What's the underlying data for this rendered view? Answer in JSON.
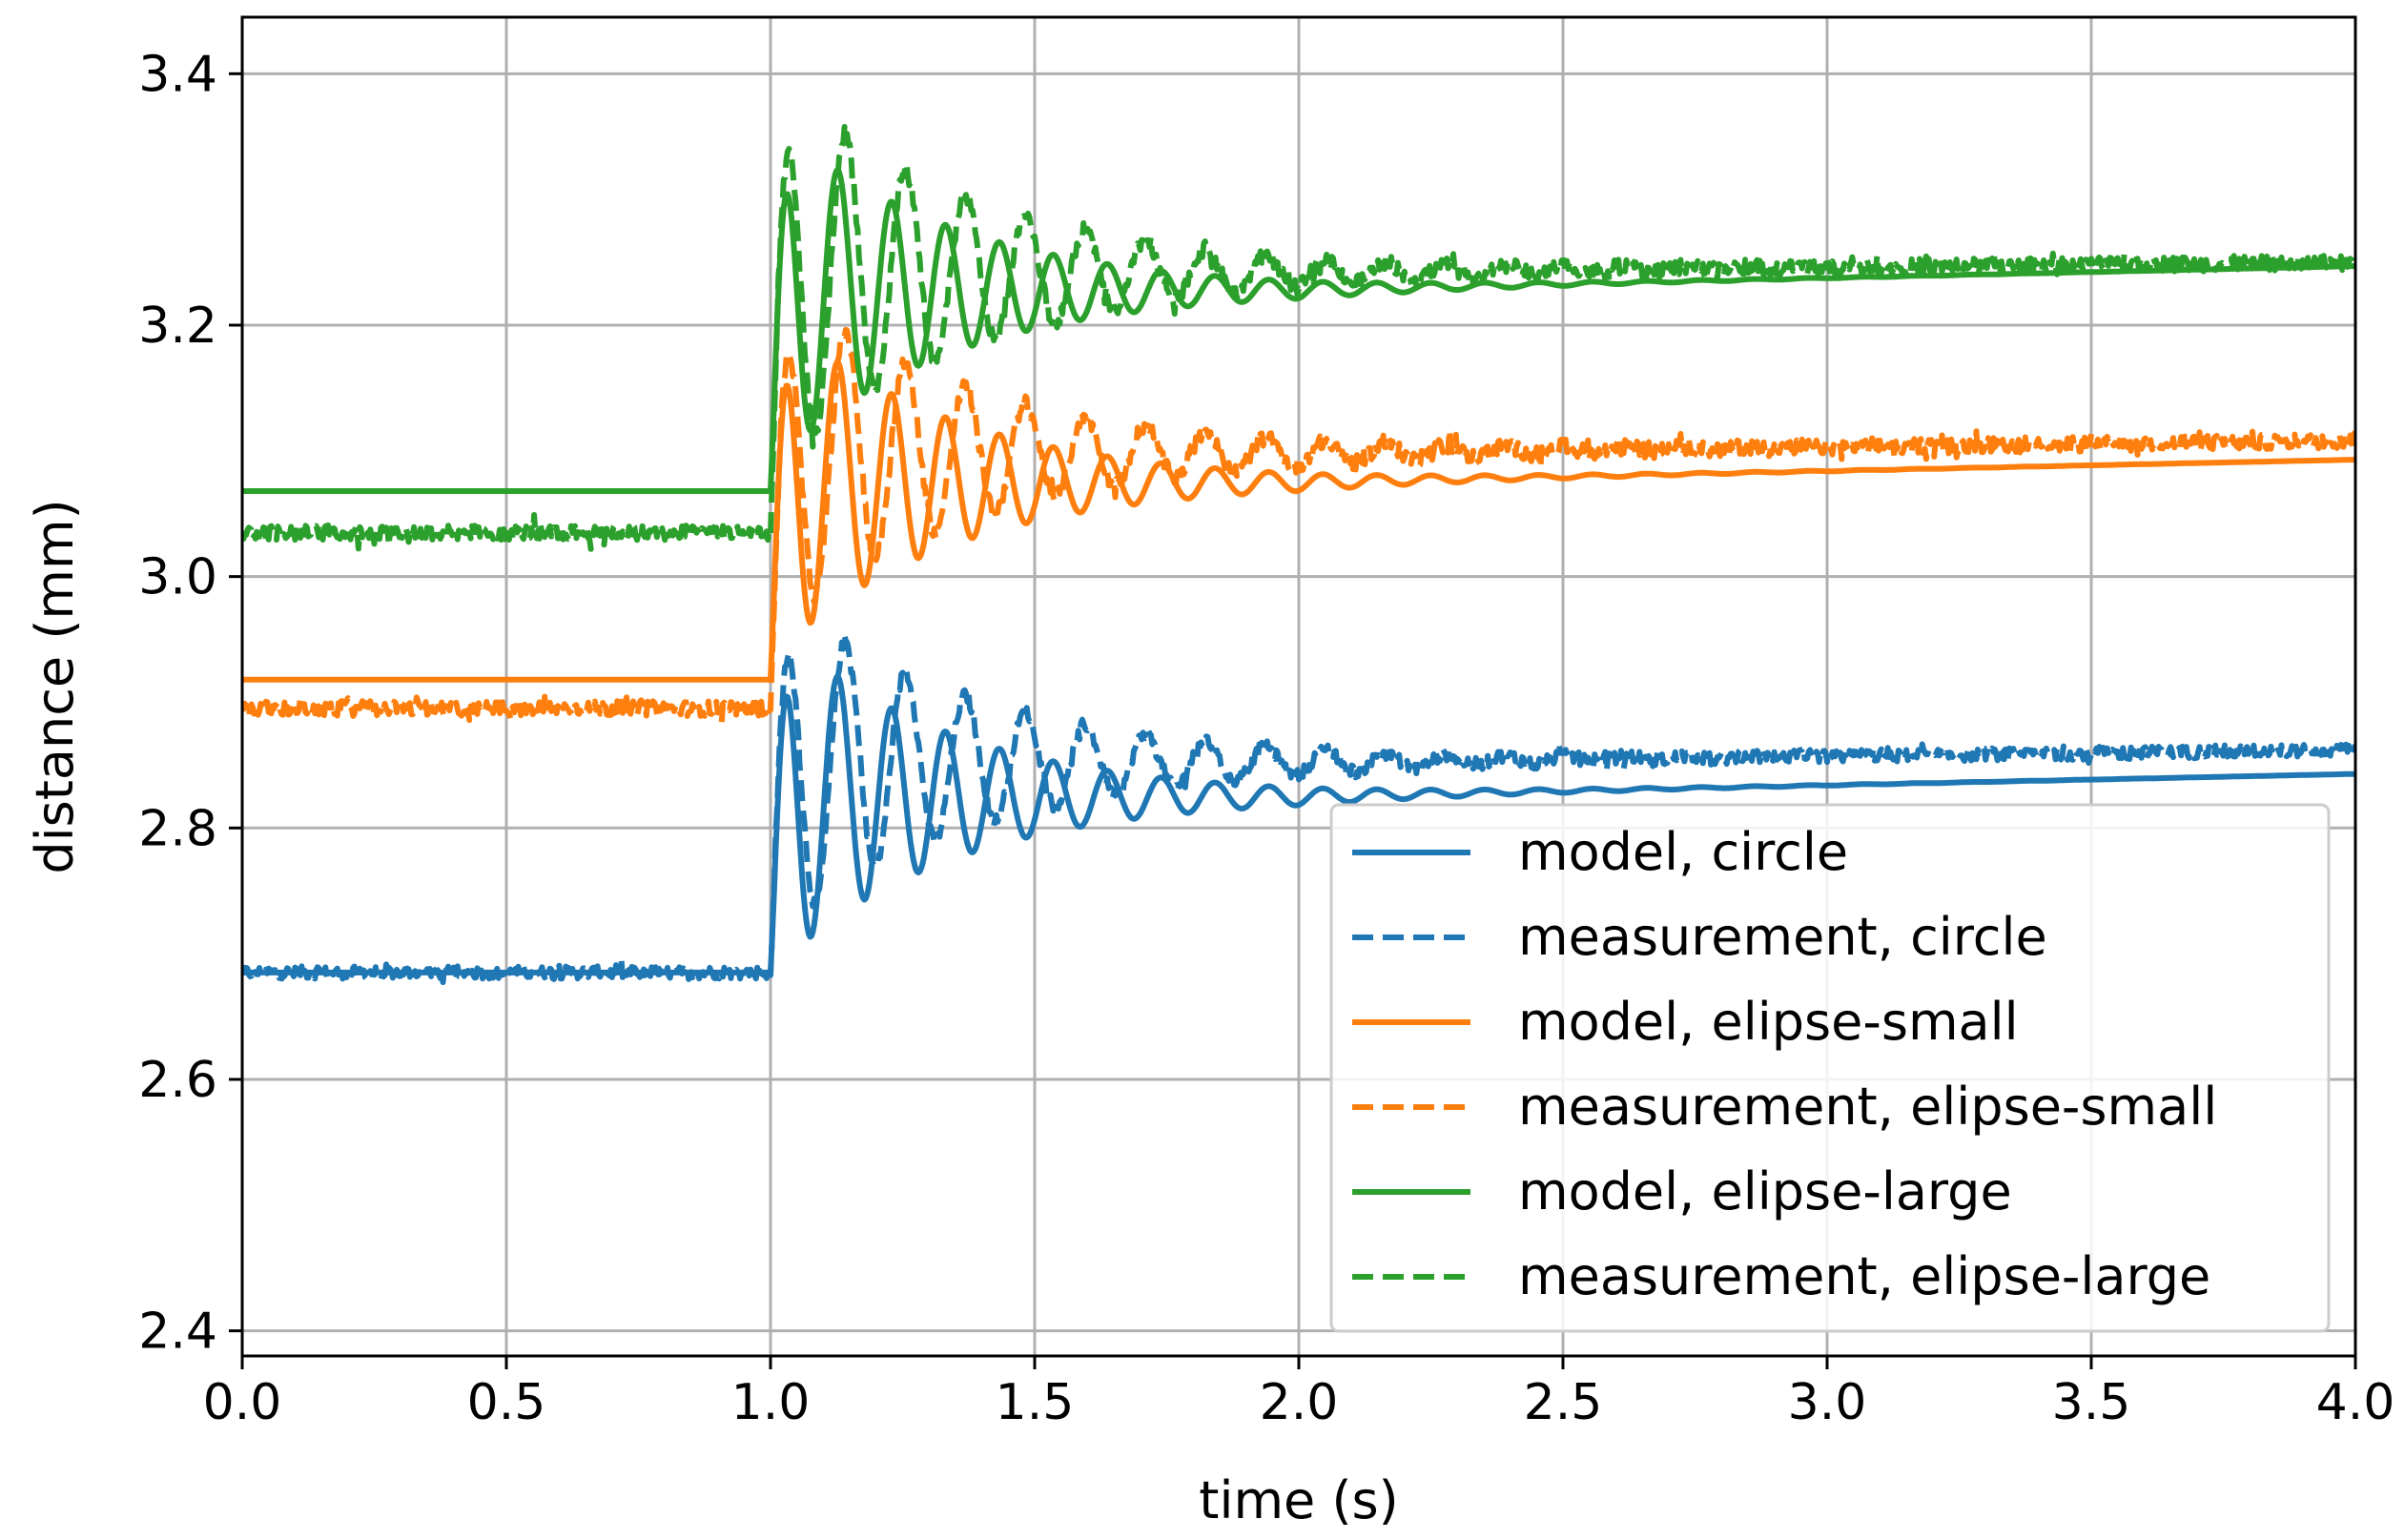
{
  "chart_data": {
    "type": "line",
    "title": "",
    "xlabel": "time (s)",
    "ylabel": "distance (mm)",
    "xlim": [
      0.0,
      4.0
    ],
    "ylim": [
      2.38,
      3.445
    ],
    "grid": true,
    "legend_position": "lower-right",
    "x_ticks": [
      {
        "value": 0.0,
        "label": "0.0"
      },
      {
        "value": 0.5,
        "label": "0.5"
      },
      {
        "value": 1.0,
        "label": "1.0"
      },
      {
        "value": 1.5,
        "label": "1.5"
      },
      {
        "value": 2.0,
        "label": "2.0"
      },
      {
        "value": 2.5,
        "label": "2.5"
      },
      {
        "value": 3.0,
        "label": "3.0"
      },
      {
        "value": 3.5,
        "label": "3.5"
      },
      {
        "value": 4.0,
        "label": "4.0"
      }
    ],
    "y_ticks": [
      {
        "value": 2.4,
        "label": "2.4"
      },
      {
        "value": 2.6,
        "label": "2.6"
      },
      {
        "value": 2.8,
        "label": "2.8"
      },
      {
        "value": 3.0,
        "label": "3.0"
      },
      {
        "value": 3.2,
        "label": "3.2"
      },
      {
        "value": 3.4,
        "label": "3.4"
      }
    ],
    "series": [
      {
        "name": "model, circle",
        "color": "#1f77b4",
        "style": "solid",
        "base": 2.685,
        "step_time": 1.0,
        "amplitude": 0.14,
        "decay": 3.0,
        "frequency": 9.8,
        "final": 2.825,
        "final_at_4s": 2.843,
        "noise": 0.0,
        "offset": -0.03
      },
      {
        "name": "measurement, circle",
        "color": "#1f77b4",
        "style": "dashed",
        "base": 2.685,
        "step_time": 1.0,
        "amplitude": 0.14,
        "decay": 2.6,
        "frequency": 8.8,
        "final": 2.852,
        "final_at_4s": 2.862,
        "noise": 0.005,
        "offset": 0.0
      },
      {
        "name": "model, elipse-small",
        "color": "#ff7f0e",
        "style": "solid",
        "base": 2.918,
        "step_time": 1.0,
        "amplitude": 0.14,
        "decay": 3.0,
        "frequency": 9.8,
        "final": 3.075,
        "final_at_4s": 3.093,
        "noise": 0.0,
        "offset": -0.03
      },
      {
        "name": "measurement, elipse-small",
        "color": "#ff7f0e",
        "style": "dashed",
        "base": 2.895,
        "step_time": 1.0,
        "amplitude": 0.14,
        "decay": 2.6,
        "frequency": 8.8,
        "final": 3.098,
        "final_at_4s": 3.108,
        "noise": 0.006,
        "offset": 0.0
      },
      {
        "name": "model, elipse-large",
        "color": "#2ca02c",
        "style": "solid",
        "base": 3.068,
        "step_time": 1.0,
        "amplitude": 0.14,
        "decay": 3.0,
        "frequency": 9.8,
        "final": 3.228,
        "final_at_4s": 3.247,
        "noise": 0.0,
        "offset": -0.03
      },
      {
        "name": "measurement, elipse-large",
        "color": "#2ca02c",
        "style": "dashed",
        "base": 3.035,
        "step_time": 1.0,
        "amplitude": 0.16,
        "decay": 2.6,
        "frequency": 8.8,
        "final": 3.242,
        "final_at_4s": 3.25,
        "noise": 0.006,
        "offset": 0.0
      }
    ]
  }
}
